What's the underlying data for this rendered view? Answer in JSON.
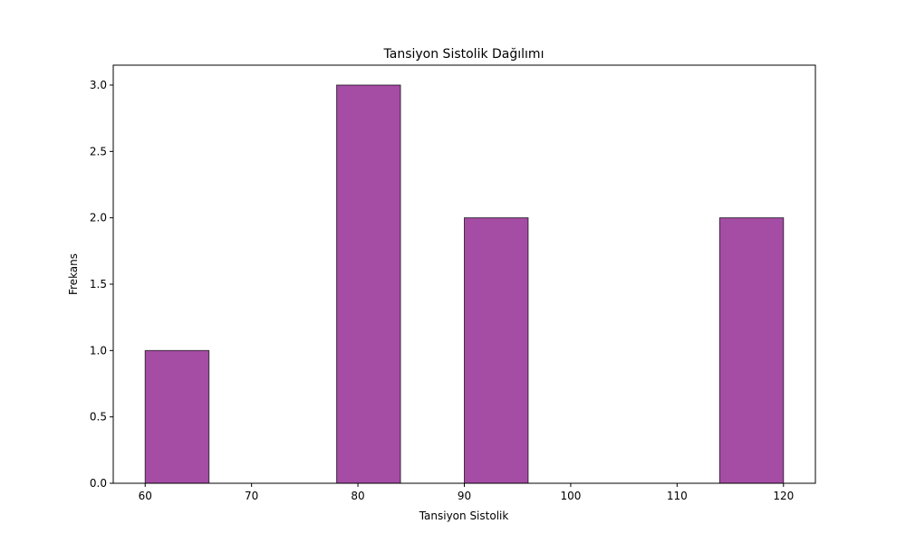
{
  "chart_data": {
    "type": "bar",
    "title": "Tansiyon Sistolik Dağılımı",
    "xlabel": "Tansiyon Sistolik",
    "ylabel": "Frekans",
    "bins": [
      {
        "start": 60,
        "end": 66,
        "value": 1
      },
      {
        "start": 66,
        "end": 72,
        "value": 0
      },
      {
        "start": 72,
        "end": 78,
        "value": 0
      },
      {
        "start": 78,
        "end": 84,
        "value": 3
      },
      {
        "start": 84,
        "end": 90,
        "value": 0
      },
      {
        "start": 90,
        "end": 96,
        "value": 2
      },
      {
        "start": 96,
        "end": 102,
        "value": 0
      },
      {
        "start": 102,
        "end": 108,
        "value": 0
      },
      {
        "start": 108,
        "end": 114,
        "value": 0
      },
      {
        "start": 114,
        "end": 120,
        "value": 2
      }
    ],
    "xlim": [
      57,
      123
    ],
    "ylim": [
      0,
      3.15
    ],
    "xticks": [
      60,
      70,
      80,
      90,
      100,
      110,
      120
    ],
    "yticks": [
      0,
      0.5,
      1.0,
      1.5,
      2.0,
      2.5,
      3.0
    ],
    "ytick_labels": [
      "0.0",
      "0.5",
      "1.0",
      "1.5",
      "2.0",
      "2.5",
      "3.0"
    ],
    "grid": false,
    "bar_color": "#a54ca5",
    "edge_color": "#000000"
  }
}
